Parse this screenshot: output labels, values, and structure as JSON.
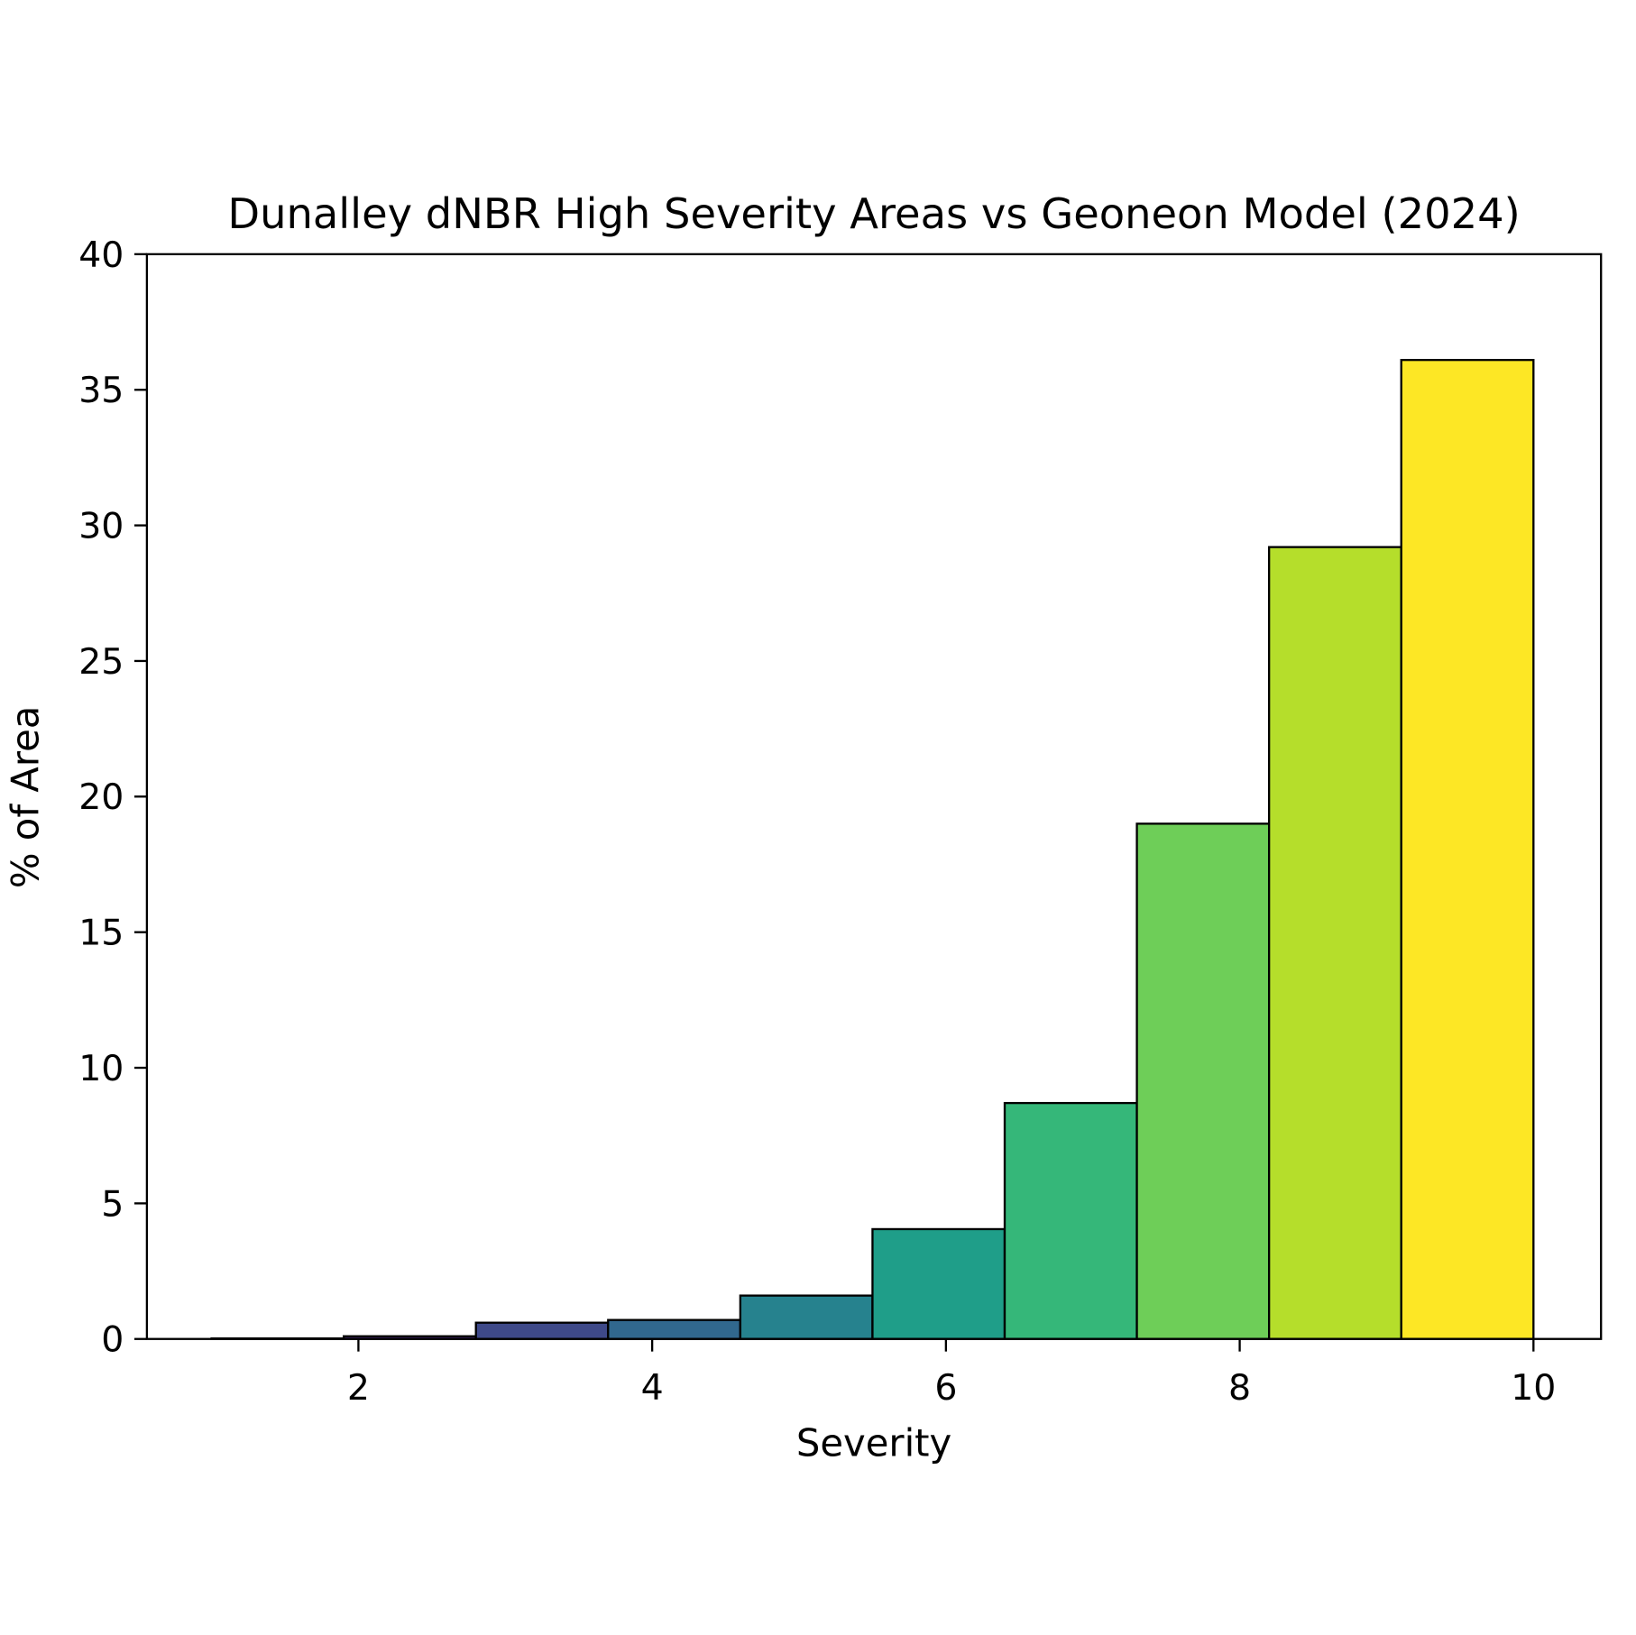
{
  "chart_data": {
    "type": "bar",
    "title": "Dunalley dNBR High Severity Areas vs Geoneon Model (2024)",
    "xlabel": "Severity",
    "ylabel": "% of Area",
    "xlim": [
      0.56,
      10.46
    ],
    "ylim": [
      0,
      40
    ],
    "xticks": [
      2,
      4,
      6,
      8,
      10
    ],
    "yticks": [
      0,
      5,
      10,
      15,
      20,
      25,
      30,
      35,
      40
    ],
    "bin_edges": [
      1.0,
      1.9,
      2.8,
      3.7,
      4.6,
      5.5,
      6.4,
      7.3,
      8.2,
      9.1,
      10.0
    ],
    "values": [
      0.02,
      0.1,
      0.6,
      0.7,
      1.6,
      4.05,
      8.7,
      19.0,
      29.2,
      36.1
    ],
    "colors": [
      "#440154",
      "#482878",
      "#3e4989",
      "#31688e",
      "#26828e",
      "#1f9e89",
      "#35b779",
      "#6ece58",
      "#b5de2b",
      "#fde725"
    ],
    "edge_color": "#000000",
    "grid": false,
    "legend": "none"
  }
}
